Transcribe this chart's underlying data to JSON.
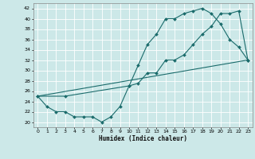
{
  "title": "",
  "xlabel": "Humidex (Indice chaleur)",
  "bg_color": "#cce8e8",
  "grid_color": "#ffffff",
  "line_color": "#1a6b6b",
  "xlim": [
    -0.5,
    23.5
  ],
  "ylim": [
    19,
    43
  ],
  "xticks": [
    0,
    1,
    2,
    3,
    4,
    5,
    6,
    7,
    8,
    9,
    10,
    11,
    12,
    13,
    14,
    15,
    16,
    17,
    18,
    19,
    20,
    21,
    22,
    23
  ],
  "yticks": [
    20,
    22,
    24,
    26,
    28,
    30,
    32,
    34,
    36,
    38,
    40,
    42
  ],
  "line1_x": [
    0,
    1,
    2,
    3,
    4,
    5,
    6,
    7,
    8,
    9,
    10,
    11,
    12,
    13,
    14,
    15,
    16,
    17,
    18,
    19,
    20,
    21,
    22,
    23
  ],
  "line1_y": [
    25,
    23,
    22,
    22,
    21,
    21,
    21,
    20,
    21,
    23,
    27,
    31,
    35,
    37,
    40,
    40,
    41,
    41.5,
    42,
    41,
    39,
    36,
    34.5,
    32
  ],
  "line2_x": [
    0,
    3,
    10,
    11,
    12,
    13,
    14,
    15,
    16,
    17,
    18,
    19,
    20,
    21,
    22,
    23
  ],
  "line2_y": [
    25,
    25,
    27,
    27.5,
    29.5,
    29.5,
    32,
    32,
    33,
    35,
    37,
    38.5,
    41,
    41,
    41.5,
    32
  ],
  "line3_x": [
    0,
    23
  ],
  "line3_y": [
    25,
    32
  ]
}
